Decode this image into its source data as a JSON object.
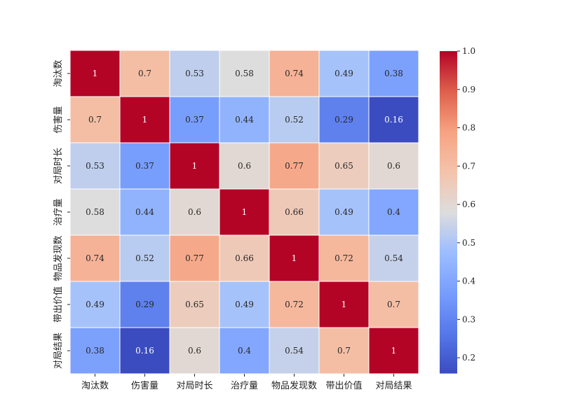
{
  "chart_data": {
    "type": "heatmap",
    "title": "",
    "xlabel": "",
    "ylabel": "",
    "row_labels": [
      "淘汰数",
      "伤害量",
      "对局时长",
      "治疗量",
      "物品发现数",
      "带出价值",
      "对局结果"
    ],
    "col_labels": [
      "淘汰数",
      "伤害量",
      "对局时长",
      "治疗量",
      "物品发现数",
      "带出价值",
      "对局结果"
    ],
    "values": [
      [
        1,
        0.7,
        0.53,
        0.58,
        0.74,
        0.49,
        0.38
      ],
      [
        0.7,
        1,
        0.37,
        0.44,
        0.52,
        0.29,
        0.16
      ],
      [
        0.53,
        0.37,
        1,
        0.6,
        0.77,
        0.65,
        0.6
      ],
      [
        0.58,
        0.44,
        0.6,
        1,
        0.66,
        0.49,
        0.4
      ],
      [
        0.74,
        0.52,
        0.77,
        0.66,
        1,
        0.72,
        0.54
      ],
      [
        0.49,
        0.29,
        0.65,
        0.49,
        0.72,
        1,
        0.7
      ],
      [
        0.38,
        0.16,
        0.6,
        0.4,
        0.54,
        0.7,
        1
      ]
    ],
    "colormap": "coolwarm",
    "vmin": 0.16,
    "vmax": 1.0,
    "annotate": true,
    "colorbar": {
      "ticks": [
        0.2,
        0.3,
        0.4,
        0.5,
        0.6,
        0.7,
        0.8,
        0.9,
        1.0
      ],
      "tick_labels": [
        "0.2",
        "0.3",
        "0.4",
        "0.5",
        "0.6",
        "0.7",
        "0.8",
        "0.9",
        "1.0"
      ],
      "placement": "right"
    },
    "grid": false,
    "cell_border_color": "#ffffff"
  }
}
